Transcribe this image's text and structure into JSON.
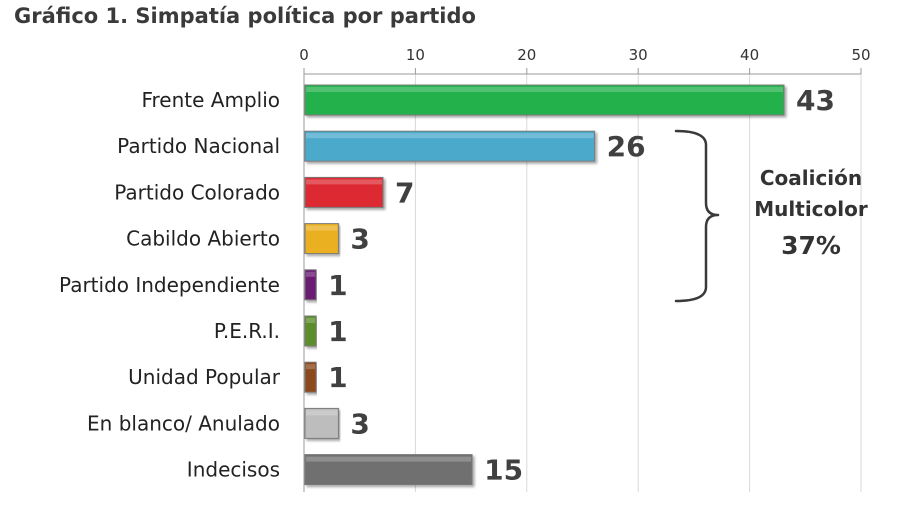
{
  "chart_data": {
    "type": "bar",
    "orientation": "horizontal",
    "title": "Gráfico 1. Simpatía política por partido",
    "categories": [
      "Frente Amplio",
      "Partido Nacional",
      "Partido Colorado",
      "Cabildo Abierto",
      "Partido Independiente",
      "P.E.R.I.",
      "Unidad Popular",
      "En blanco/ Anulado",
      "Indecisos"
    ],
    "values": [
      43,
      26,
      7,
      3,
      1,
      1,
      1,
      3,
      15
    ],
    "value_labels": [
      "43",
      "26",
      "7",
      "3",
      "1",
      "1",
      "1",
      "3",
      "15"
    ],
    "colors": [
      "#22b14c",
      "#4ba9cc",
      "#dd2a32",
      "#ebb021",
      "#6b1f75",
      "#5b8f2c",
      "#8b4a1c",
      "#bdbdbd",
      "#6f6f6f"
    ],
    "xlim": [
      0,
      50
    ],
    "xticks": [
      0,
      10,
      20,
      30,
      40,
      50
    ],
    "xtick_labels": [
      "0",
      "10",
      "20",
      "30",
      "40",
      "50"
    ],
    "x_axis_position": "top",
    "grid": true,
    "annotation": {
      "type": "brace",
      "groups": [
        "Partido Nacional",
        "Partido Colorado",
        "Cabildo Abierto",
        "Partido Independiente"
      ],
      "label_lines": [
        "Coalición",
        "Multicolor"
      ],
      "value": "37%"
    }
  }
}
